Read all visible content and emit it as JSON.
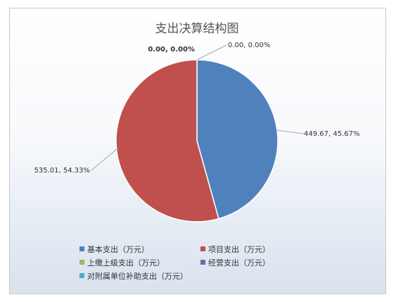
{
  "chart_data": {
    "type": "pie",
    "title": "支出决算结构图",
    "slices": [
      {
        "name": "基本支出（万元）",
        "value": 449.67,
        "label": "449.67, 45.67%",
        "color": "#4f81bd"
      },
      {
        "name": "项目支出（万元）",
        "value": 535.01,
        "label": "535.01, 54.33%",
        "color": "#c0504d"
      },
      {
        "name": "上缴上级支出（万元）",
        "value": 0,
        "label": "0.00, 0.00%",
        "color": "#9bbb59"
      },
      {
        "name": "经营支出（万元）",
        "value": 0,
        "label": "0.00, 0.00%",
        "color": "#8064a2"
      },
      {
        "name": "对附属单位补助支出（万元）",
        "value": 0,
        "label": "",
        "color": "#4bacc6"
      }
    ],
    "legend_position": "bottom"
  }
}
